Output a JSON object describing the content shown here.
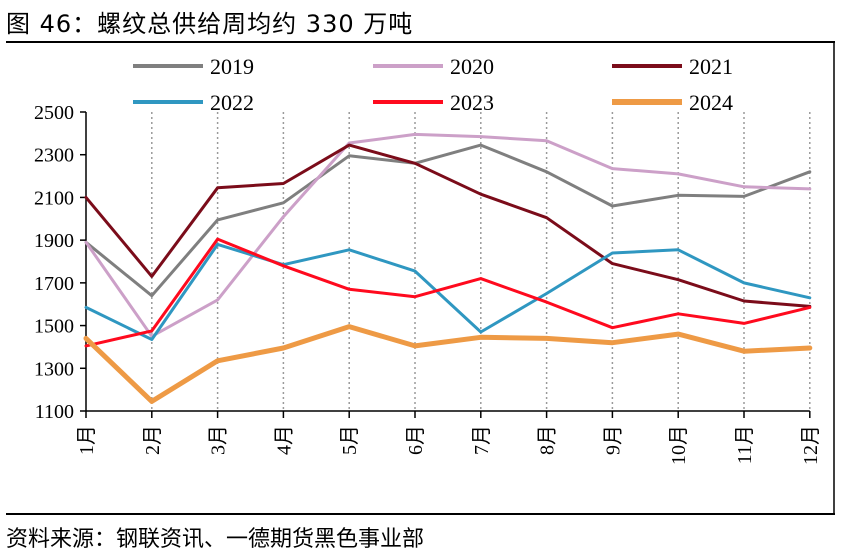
{
  "title": "图 46：螺纹总供给周均约 330 万吨",
  "source": "资料来源：钢联资讯、一德期货黑色事业部",
  "chart_data": {
    "type": "line",
    "title": "图 46：螺纹总供给周均约 330 万吨",
    "xlabel": "",
    "ylabel": "",
    "ylim": [
      1100,
      2500
    ],
    "yticks": [
      1100,
      1300,
      1500,
      1700,
      1900,
      2100,
      2300,
      2500
    ],
    "categories": [
      "1月",
      "2月",
      "3月",
      "4月",
      "5月",
      "6月",
      "7月",
      "8月",
      "9月",
      "10月",
      "11月",
      "12月"
    ],
    "grid": "vertical dotted",
    "legend": "top",
    "series": [
      {
        "name": "2019",
        "color": "#7f7f7f",
        "width": 3,
        "values": [
          1890,
          1640,
          1995,
          2075,
          2295,
          2260,
          2345,
          2220,
          2060,
          2110,
          2105,
          2220
        ]
      },
      {
        "name": "2020",
        "color": "#cca0c8",
        "width": 3,
        "values": [
          1890,
          1450,
          1620,
          2010,
          2355,
          2395,
          2385,
          2365,
          2235,
          2210,
          2150,
          2140
        ]
      },
      {
        "name": "2021",
        "color": "#7b0c1a",
        "width": 3,
        "values": [
          2100,
          1730,
          2145,
          2165,
          2345,
          2260,
          2115,
          2005,
          1790,
          1715,
          1615,
          1590
        ]
      },
      {
        "name": "2022",
        "color": "#2f97c1",
        "width": 3,
        "values": [
          1585,
          1435,
          1880,
          1785,
          1855,
          1755,
          1470,
          1650,
          1840,
          1855,
          1700,
          1630
        ]
      },
      {
        "name": "2023",
        "color": "#ff0a1e",
        "width": 3,
        "values": [
          1405,
          1475,
          1905,
          1780,
          1670,
          1635,
          1720,
          1610,
          1490,
          1555,
          1510,
          1585
        ]
      },
      {
        "name": "2024",
        "color": "#ee9a45",
        "width": 5,
        "values": [
          1440,
          1145,
          1335,
          1395,
          1495,
          1405,
          1445,
          1440,
          1420,
          1460,
          1380,
          1395
        ]
      }
    ]
  }
}
